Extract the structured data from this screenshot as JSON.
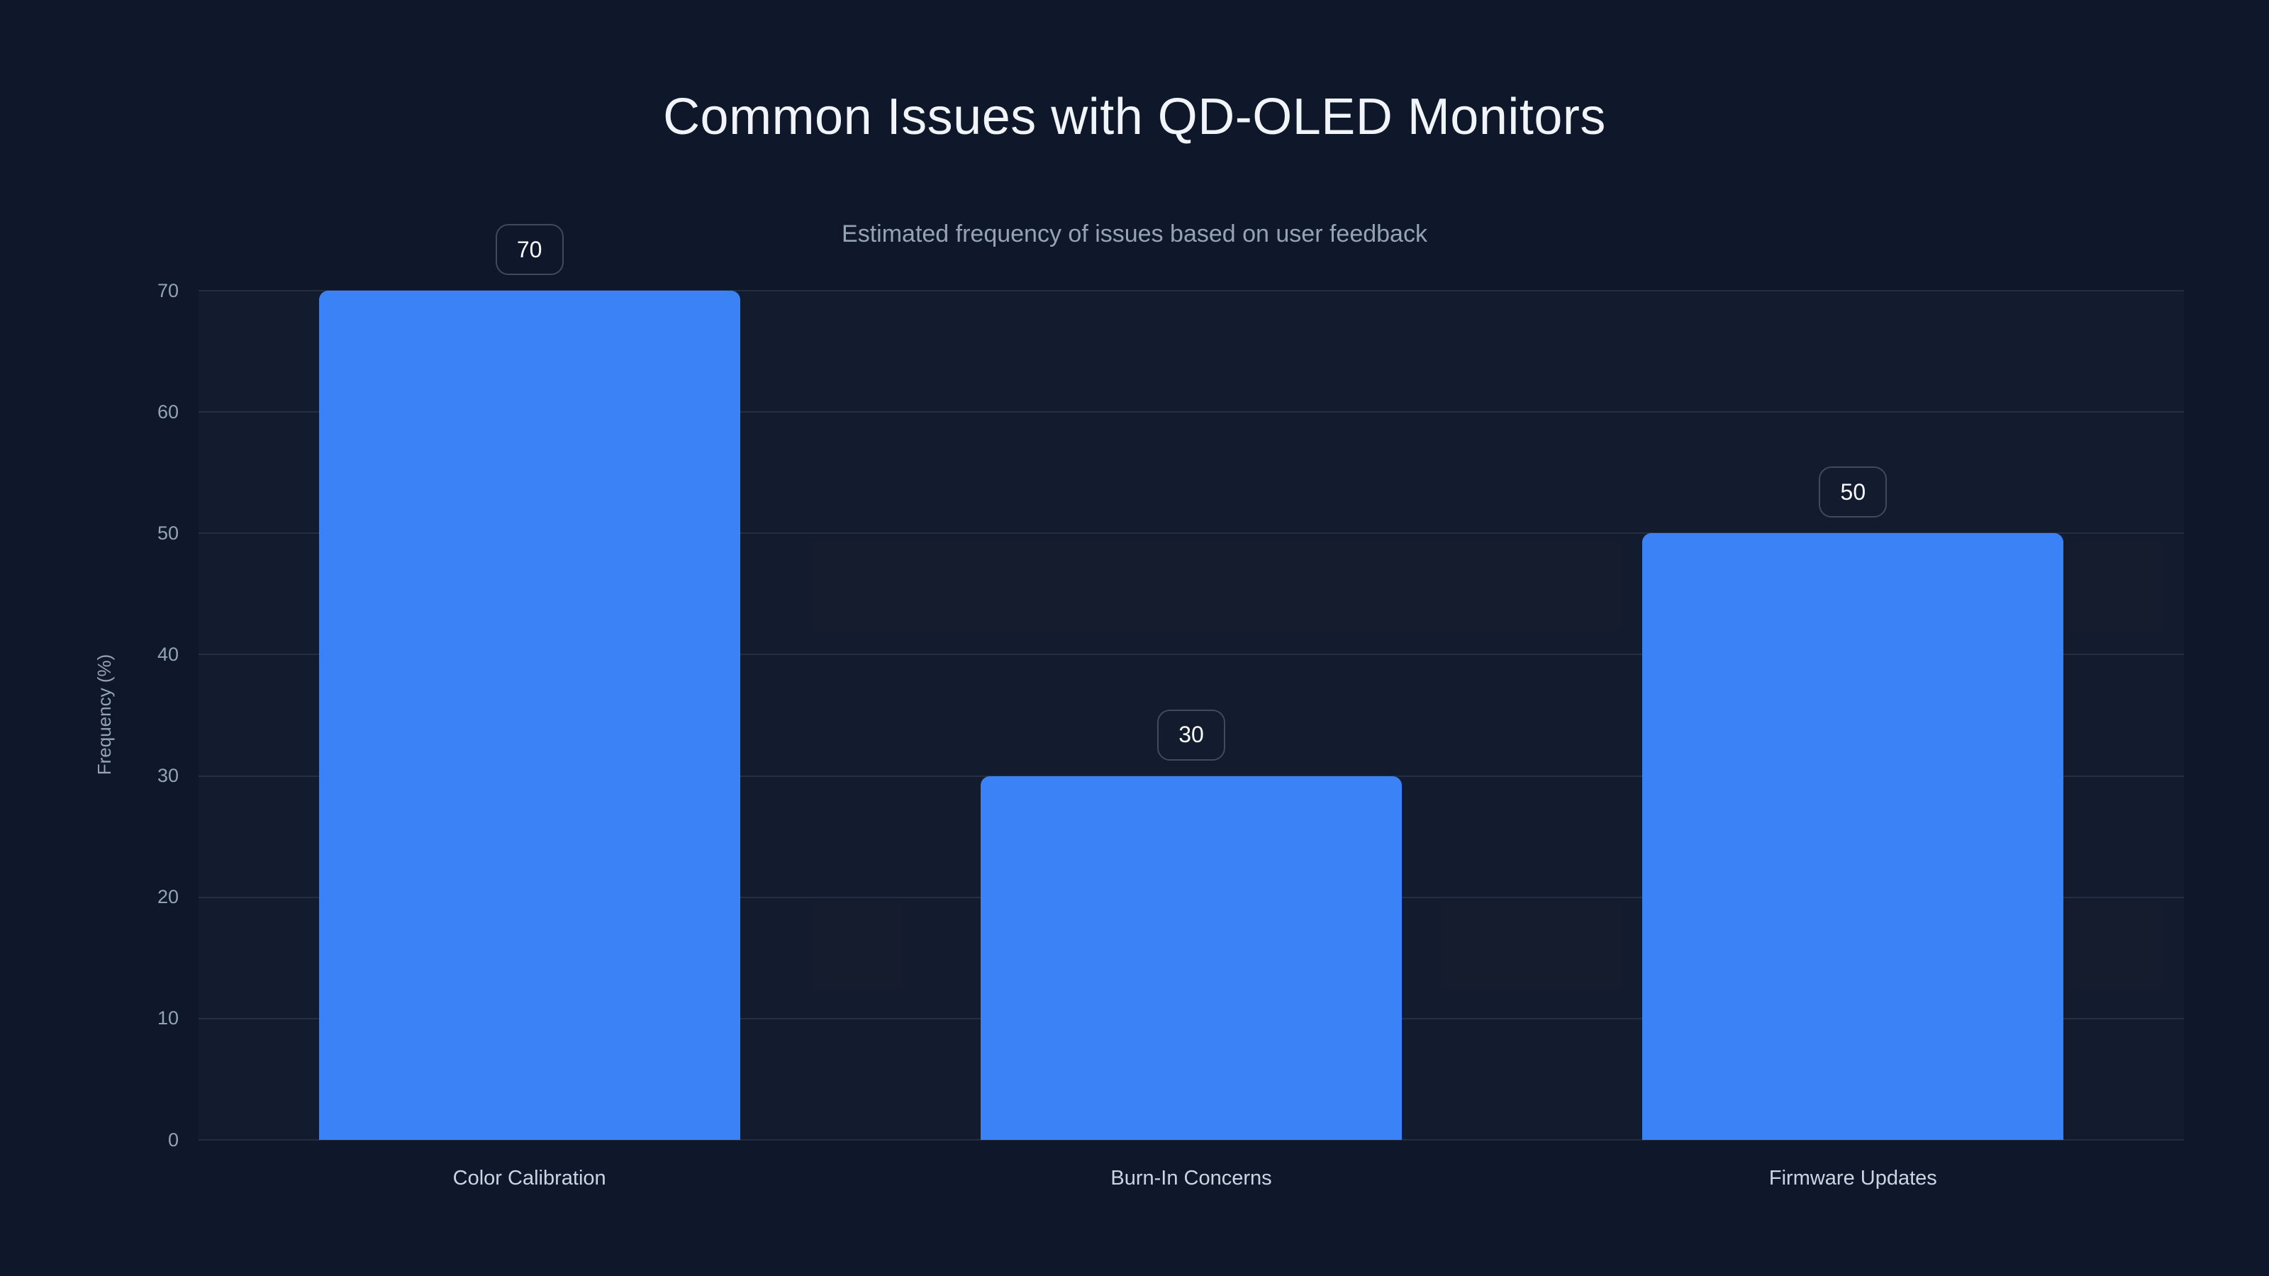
{
  "header": {
    "title": "Common Issues with QD-OLED Monitors",
    "subtitle": "Estimated frequency of issues based on user feedback"
  },
  "chart_data": {
    "type": "bar",
    "title": "Common Issues with QD-OLED Monitors",
    "subtitle": "Estimated frequency of issues based on user feedback",
    "categories": [
      "Color Calibration",
      "Burn-In Concerns",
      "Firmware Updates"
    ],
    "values": [
      70,
      30,
      50
    ],
    "value_labels": [
      "70",
      "30",
      "50"
    ],
    "xlabel": "",
    "ylabel": "Frequency (%)",
    "ylim": [
      0,
      70
    ],
    "yticks": [
      "0",
      "10",
      "20",
      "30",
      "40",
      "50",
      "60",
      "70"
    ],
    "grid": "horizontal",
    "legend": "none"
  },
  "colors": {
    "background": "#0f172a",
    "bar": "#3b82f6",
    "title_text": "#f1f5f9",
    "subtitle_text": "#94a3b8",
    "tick_text": "#94a3b8",
    "category_text": "#cbd5e1",
    "badge_border": "#3e4a60",
    "badge_text": "#f8fafc"
  }
}
